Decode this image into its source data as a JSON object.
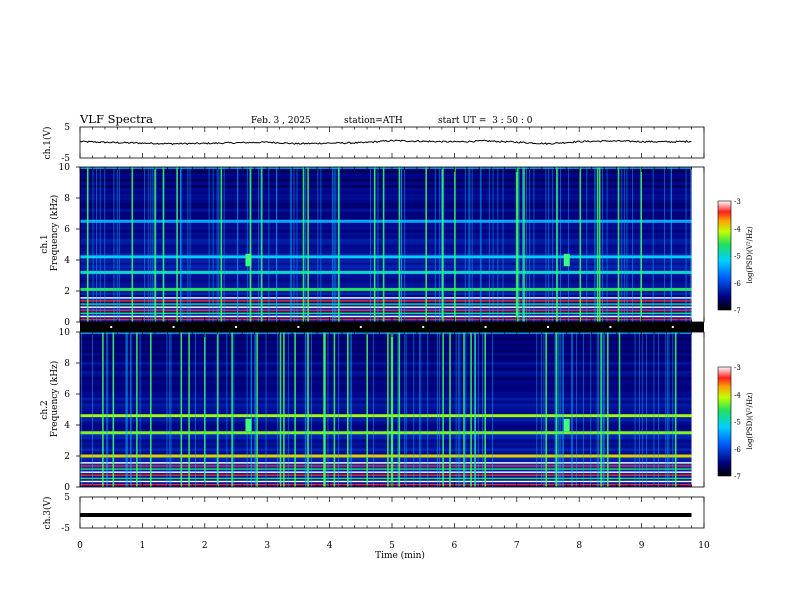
{
  "header": {
    "title": "VLF Spectra",
    "date": "Feb. 3 , 2025",
    "station": "station=ATH",
    "start": "start UT =  3 : 50 : 0"
  },
  "chart_data": [
    {
      "type": "line",
      "panel": "ch1-waveform",
      "ylabel": "ch.1(V)",
      "ylim": [
        -5,
        5
      ],
      "yticks": [
        "5",
        "-5"
      ],
      "xlim": [
        0,
        10
      ],
      "x_min": [
        0,
        0.5,
        1,
        1.5,
        2,
        2.5,
        3,
        3.5,
        4,
        4.5,
        5,
        5.5,
        6,
        6.5,
        7,
        7.5,
        8,
        8.5,
        9,
        9.5,
        9.8
      ],
      "values_V": [
        0.3,
        0.0,
        -0.2,
        -0.4,
        -0.3,
        -0.1,
        0.1,
        -0.4,
        -0.2,
        -0.1,
        0.6,
        0.4,
        0.2,
        0.5,
        0.1,
        -0.4,
        0.3,
        0.5,
        0.3,
        0.2,
        0.4
      ]
    },
    {
      "type": "heatmap",
      "panel": "ch1-spectrogram",
      "ylabel": "ch.1\nFrequency (kHz)",
      "ylabel_line1": "ch.1",
      "ylabel_line2": "Frequency (kHz)",
      "ylim": [
        0,
        10
      ],
      "yticks": [
        "0",
        "2",
        "4",
        "6",
        "8",
        "10"
      ],
      "xlim": [
        0,
        10
      ],
      "data_end_min": 9.8,
      "colorbar": {
        "label": "log(PSD)(V²/Hz)",
        "range": [
          -7,
          -3
        ],
        "ticks": [
          "-3",
          "-4",
          "-5",
          "-6",
          "-7"
        ]
      },
      "bands_kHz": [
        {
          "f": 2.1,
          "level": -4.6
        },
        {
          "f": 3.2,
          "level": -5.0
        },
        {
          "f": 4.2,
          "level": -5.2
        },
        {
          "f": 6.5,
          "level": -5.4
        }
      ],
      "bursts_min": [
        2.7,
        7.8
      ]
    },
    {
      "type": "heatmap",
      "panel": "ch2-spectrogram",
      "ylabel_line1": "ch.2",
      "ylabel_line2": "Frequency (kHz)",
      "ylim": [
        0,
        10
      ],
      "yticks": [
        "0",
        "2",
        "4",
        "6",
        "8",
        "10"
      ],
      "xlim": [
        0,
        10
      ],
      "data_end_min": 9.8,
      "colorbar": {
        "label": "log(PSD)(V²/Hz)",
        "range": [
          -7,
          -3
        ],
        "ticks": [
          "-3",
          "-4",
          "-5",
          "-6",
          "-7"
        ]
      },
      "bands_kHz": [
        {
          "f": 2.0,
          "level": -3.9
        },
        {
          "f": 3.5,
          "level": -4.3
        },
        {
          "f": 4.6,
          "level": -4.2
        }
      ],
      "bursts_min": [
        2.7,
        7.8
      ]
    },
    {
      "type": "line",
      "panel": "ch3-waveform",
      "ylabel": "ch.3(V)",
      "ylim": [
        -5,
        5
      ],
      "yticks": [
        "5",
        "-5"
      ],
      "xlim": [
        0,
        10
      ],
      "x_min": [
        0,
        9.8
      ],
      "values_V": [
        -0.8,
        -0.8
      ]
    }
  ],
  "x_axis": {
    "label": "Time (min)",
    "ticks": [
      "0",
      "1",
      "2",
      "3",
      "4",
      "5",
      "6",
      "7",
      "8",
      "9",
      "10"
    ]
  },
  "colors": {
    "spectrogram_base": "#000080",
    "band_strong": "#ff2020",
    "band_mid": "#20e060",
    "trace": "#000000"
  }
}
